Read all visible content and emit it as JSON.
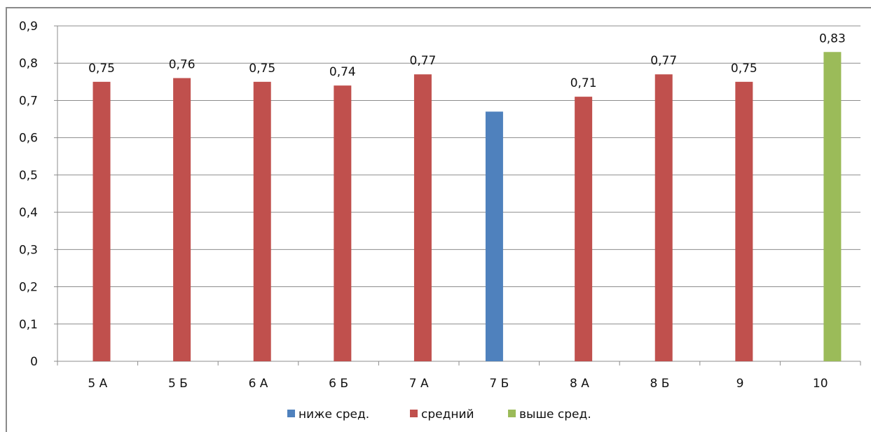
{
  "chart_data": {
    "type": "bar",
    "title": "",
    "xlabel": "",
    "ylabel": "",
    "ylim": [
      0,
      0.9
    ],
    "y_ticks": [
      "0",
      "0,1",
      "0,2",
      "0,3",
      "0,4",
      "0,5",
      "0,6",
      "0,7",
      "0,8",
      "0,9"
    ],
    "grid": true,
    "legend_position": "bottom",
    "categories": [
      "5 А",
      "5 Б",
      "6 А",
      "6 Б",
      "7 А",
      "7 Б",
      "8 А",
      "8 Б",
      "9",
      "10"
    ],
    "series": [
      {
        "name": "ниже сред.",
        "color": "#4f81bd",
        "values": [
          null,
          null,
          null,
          null,
          null,
          0.67,
          null,
          null,
          null,
          null
        ],
        "labels": [
          "",
          "",
          "",
          "",
          "",
          "",
          "",
          "",
          "",
          ""
        ]
      },
      {
        "name": "средний",
        "color": "#c0504d",
        "values": [
          0.75,
          0.76,
          0.75,
          0.74,
          0.77,
          null,
          0.71,
          0.77,
          0.75,
          null
        ],
        "labels": [
          "0,75",
          "0,76",
          "0,75",
          "0,74",
          "0,77",
          "",
          "0,71",
          "0,77",
          "0,75",
          ""
        ]
      },
      {
        "name": "выше сред.",
        "color": "#9bbb59",
        "values": [
          null,
          null,
          null,
          null,
          null,
          null,
          null,
          null,
          null,
          0.83
        ],
        "labels": [
          "",
          "",
          "",
          "",
          "",
          "",
          "",
          "",
          "",
          "0,83"
        ]
      }
    ]
  }
}
